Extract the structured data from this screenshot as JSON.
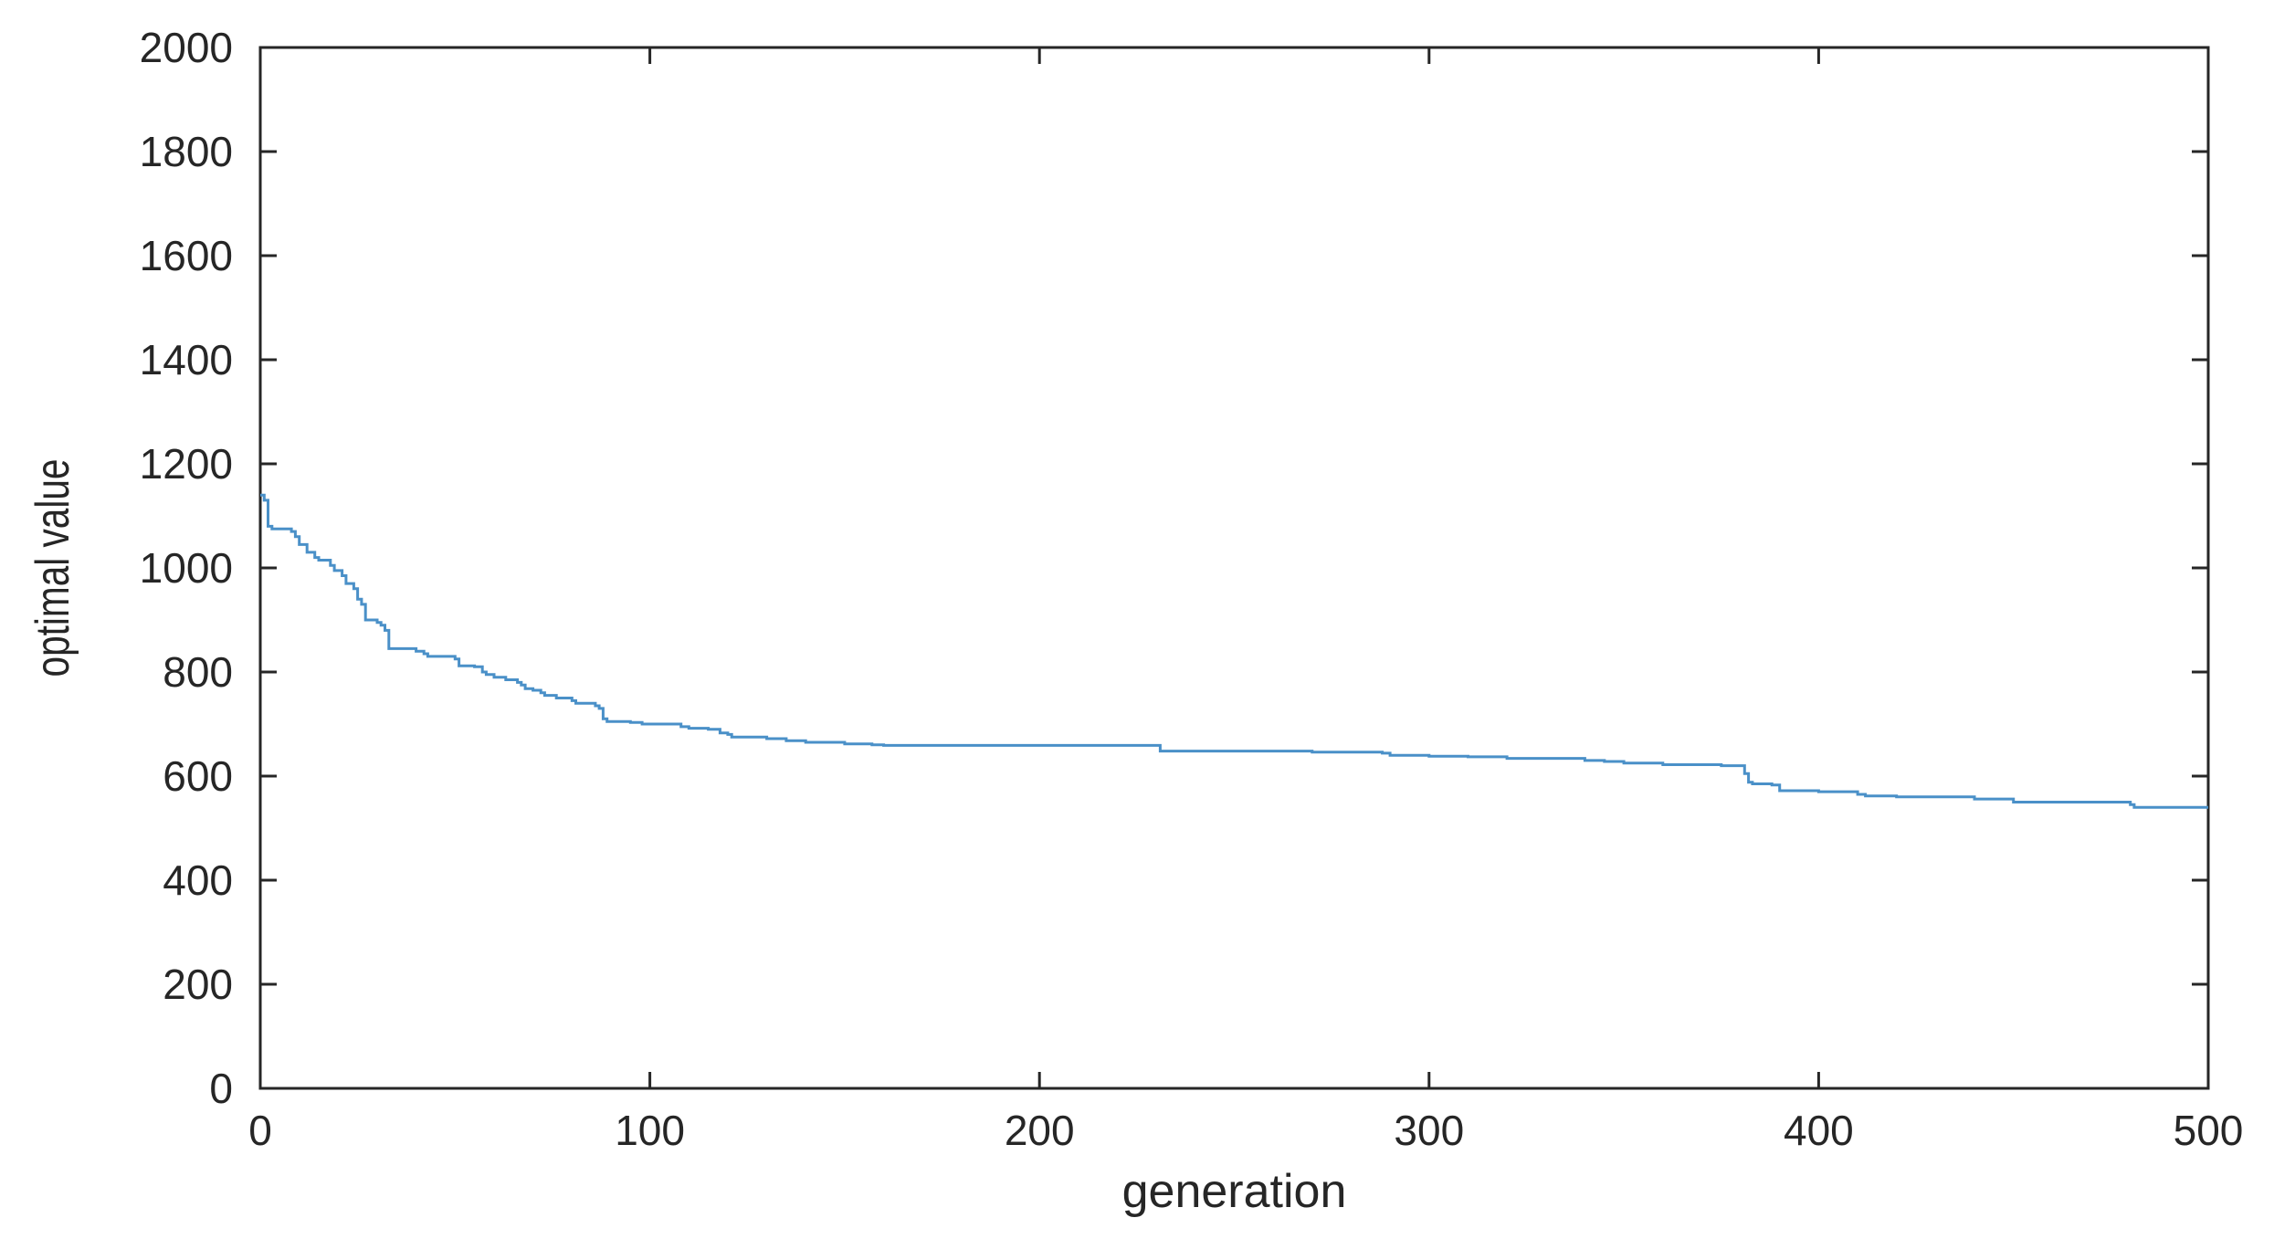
{
  "chart_data": {
    "type": "line",
    "xlabel": "generation",
    "ylabel": "optimal value",
    "xlim": [
      0,
      500
    ],
    "ylim": [
      0,
      2000
    ],
    "xticks": [
      0,
      100,
      200,
      300,
      400,
      500
    ],
    "yticks": [
      0,
      200,
      400,
      600,
      800,
      1000,
      1200,
      1400,
      1600,
      1800,
      2000
    ],
    "grid": false,
    "legend": "none",
    "line_color": "#4a90c8",
    "series": [
      {
        "x": [
          0,
          1,
          2,
          3,
          6,
          8,
          9,
          10,
          12,
          14,
          15,
          18,
          19,
          21,
          22,
          24,
          25,
          26,
          27,
          30,
          31,
          32,
          33,
          37,
          40,
          42,
          43,
          48,
          50,
          51,
          55,
          57,
          58,
          60,
          62,
          63,
          66,
          67,
          68,
          70,
          72,
          73,
          76,
          78,
          80,
          81,
          84,
          86,
          87,
          88,
          89,
          90,
          95,
          98,
          100,
          108,
          110,
          115,
          118,
          120,
          121,
          130,
          135,
          140,
          150,
          157,
          160,
          230,
          231,
          260,
          270,
          288,
          290,
          300,
          310,
          320,
          340,
          345,
          350,
          360,
          375,
          380,
          381,
          382,
          383,
          388,
          390,
          400,
          410,
          412,
          420,
          440,
          450,
          480,
          481,
          500
        ],
        "y": [
          1140,
          1130,
          1080,
          1075,
          1075,
          1070,
          1060,
          1045,
          1030,
          1020,
          1015,
          1005,
          995,
          985,
          970,
          960,
          940,
          930,
          900,
          895,
          890,
          880,
          845,
          845,
          840,
          835,
          830,
          830,
          825,
          812,
          810,
          800,
          795,
          790,
          790,
          785,
          780,
          775,
          768,
          765,
          760,
          755,
          750,
          750,
          745,
          740,
          740,
          735,
          730,
          710,
          705,
          705,
          703,
          700,
          700,
          695,
          692,
          690,
          683,
          680,
          675,
          672,
          668,
          665,
          662,
          660,
          659,
          659,
          648,
          648,
          646,
          644,
          640,
          638,
          637,
          634,
          630,
          628,
          625,
          622,
          620,
          620,
          605,
          588,
          585,
          583,
          572,
          570,
          565,
          562,
          560,
          556,
          550,
          545,
          540,
          540
        ]
      }
    ]
  }
}
